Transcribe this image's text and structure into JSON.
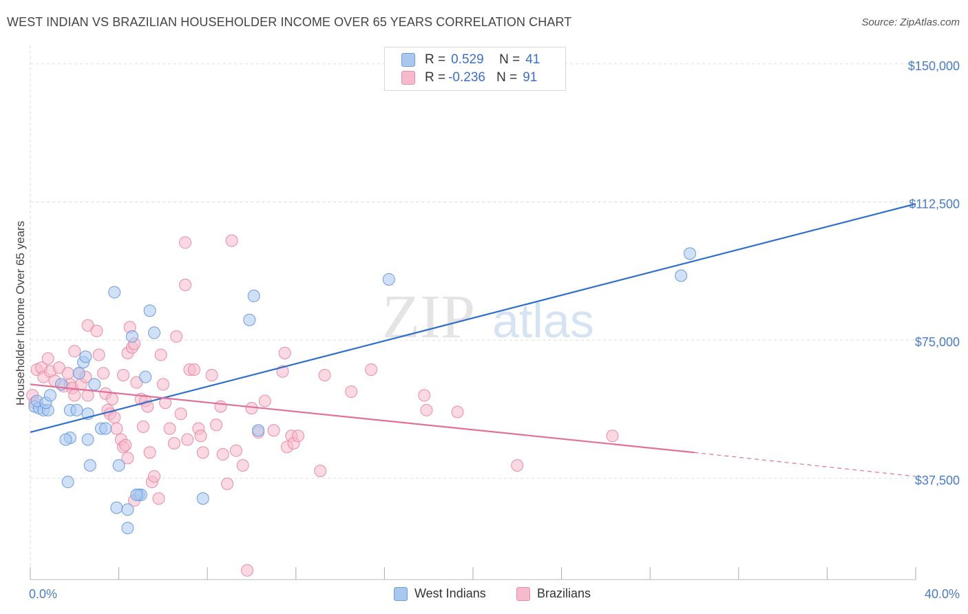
{
  "title": "WEST INDIAN VS BRAZILIAN HOUSEHOLDER INCOME OVER 65 YEARS CORRELATION CHART",
  "source": "Source: ZipAtlas.com",
  "watermark": {
    "zip": "ZIP",
    "atlas": "atlas"
  },
  "legend": {
    "r_label": "R =",
    "n_label": "N =",
    "rows": [
      {
        "r": "0.529",
        "n": "41",
        "color": "#a9c8f0",
        "border": "#6a9bdc"
      },
      {
        "r": "-0.236",
        "n": "91",
        "color": "#f7b9cc",
        "border": "#e98aa8"
      }
    ]
  },
  "bottom_legend": {
    "west": "West Indians",
    "braz": "Brazilians"
  },
  "chart_data": {
    "type": "scatter",
    "ylabel": "Householder Income Over 65 years",
    "xlim": [
      0,
      40
    ],
    "ylim": [
      10000,
      155000
    ],
    "x_tick_labels": [
      "0.0%",
      "40.0%"
    ],
    "y_ticks": [
      {
        "value": 37500,
        "label": "$37,500"
      },
      {
        "value": 75000,
        "label": "$75,000"
      },
      {
        "value": 112500,
        "label": "$112,500"
      },
      {
        "value": 150000,
        "label": "$150,000"
      }
    ],
    "series": [
      {
        "name": "West Indians",
        "color": "#a9c8f0",
        "stroke": "#6a9bdc",
        "line_color": "#2e6fcc",
        "trend": {
          "x0": 0,
          "y0": 50000,
          "x1": 40,
          "y1": 112000
        },
        "points": [
          [
            0.2,
            57000
          ],
          [
            0.4,
            56500
          ],
          [
            0.6,
            56000
          ],
          [
            0.3,
            58500
          ],
          [
            0.8,
            56000
          ],
          [
            0.7,
            58000
          ],
          [
            0.9,
            60000
          ],
          [
            1.8,
            56000
          ],
          [
            2.1,
            56000
          ],
          [
            1.4,
            63000
          ],
          [
            2.4,
            69000
          ],
          [
            2.5,
            70500
          ],
          [
            2.2,
            66000
          ],
          [
            2.9,
            63000
          ],
          [
            2.6,
            55000
          ],
          [
            1.8,
            48500
          ],
          [
            1.6,
            48000
          ],
          [
            2.6,
            48000
          ],
          [
            3.2,
            51000
          ],
          [
            3.4,
            51000
          ],
          [
            3.8,
            88000
          ],
          [
            5.4,
            83000
          ],
          [
            5.6,
            77000
          ],
          [
            4.6,
            76000
          ],
          [
            5.2,
            65000
          ],
          [
            2.7,
            41000
          ],
          [
            4.0,
            41000
          ],
          [
            1.7,
            36500
          ],
          [
            4.9,
            33000
          ],
          [
            5.0,
            33000
          ],
          [
            4.8,
            33000
          ],
          [
            3.9,
            29500
          ],
          [
            4.4,
            29000
          ],
          [
            4.4,
            24000
          ],
          [
            7.8,
            32000
          ],
          [
            10.1,
            87000
          ],
          [
            9.9,
            80500
          ],
          [
            10.3,
            50500
          ],
          [
            16.2,
            91500
          ],
          [
            29.8,
            98500
          ],
          [
            29.4,
            92500
          ]
        ]
      },
      {
        "name": "Brazilians",
        "color": "#f7b9cc",
        "stroke": "#e98aa8",
        "line_color": "#e0709a",
        "trend": {
          "x0": 0,
          "y0": 63000,
          "x1": 30,
          "y1": 44500
        },
        "trend_ext": {
          "x0": 30,
          "y0": 44500,
          "x1": 40,
          "y1": 38000
        },
        "points": [
          [
            0.1,
            60000
          ],
          [
            0.2,
            58000
          ],
          [
            0.3,
            67000
          ],
          [
            0.5,
            67500
          ],
          [
            0.6,
            65000
          ],
          [
            0.8,
            70000
          ],
          [
            0.9,
            66500
          ],
          [
            1.1,
            64000
          ],
          [
            1.3,
            67500
          ],
          [
            1.5,
            62500
          ],
          [
            1.7,
            66000
          ],
          [
            1.8,
            63000
          ],
          [
            1.9,
            62000
          ],
          [
            2.0,
            60000
          ],
          [
            2.2,
            66000
          ],
          [
            2.3,
            63000
          ],
          [
            2.5,
            65000
          ],
          [
            2.6,
            60000
          ],
          [
            2.0,
            72000
          ],
          [
            2.6,
            79000
          ],
          [
            3.0,
            77500
          ],
          [
            3.1,
            71000
          ],
          [
            3.3,
            66000
          ],
          [
            3.4,
            60500
          ],
          [
            3.5,
            56000
          ],
          [
            3.6,
            55000
          ],
          [
            3.7,
            59000
          ],
          [
            3.8,
            54000
          ],
          [
            3.9,
            51000
          ],
          [
            4.1,
            48000
          ],
          [
            4.2,
            46000
          ],
          [
            4.3,
            46500
          ],
          [
            4.4,
            43000
          ],
          [
            4.2,
            65500
          ],
          [
            4.4,
            71500
          ],
          [
            4.5,
            78500
          ],
          [
            4.6,
            73000
          ],
          [
            4.7,
            74000
          ],
          [
            4.8,
            63500
          ],
          [
            5.0,
            59000
          ],
          [
            5.1,
            51500
          ],
          [
            5.2,
            58500
          ],
          [
            5.3,
            57000
          ],
          [
            5.4,
            44500
          ],
          [
            5.5,
            36500
          ],
          [
            5.6,
            38000
          ],
          [
            5.8,
            32000
          ],
          [
            4.7,
            31500
          ],
          [
            5.9,
            71000
          ],
          [
            6.0,
            63000
          ],
          [
            6.1,
            58000
          ],
          [
            6.3,
            51000
          ],
          [
            6.5,
            47000
          ],
          [
            6.6,
            76000
          ],
          [
            6.8,
            55000
          ],
          [
            7.0,
            90000
          ],
          [
            7.2,
            67000
          ],
          [
            7.4,
            67000
          ],
          [
            7.6,
            51000
          ],
          [
            7.7,
            49000
          ],
          [
            7.8,
            44500
          ],
          [
            7.0,
            101500
          ],
          [
            8.2,
            65500
          ],
          [
            8.6,
            57000
          ],
          [
            8.7,
            44000
          ],
          [
            8.9,
            36000
          ],
          [
            9.1,
            102000
          ],
          [
            9.3,
            45000
          ],
          [
            9.6,
            41000
          ],
          [
            9.8,
            12500
          ],
          [
            10.6,
            58500
          ],
          [
            10.3,
            50000
          ],
          [
            11.0,
            50500
          ],
          [
            11.4,
            66500
          ],
          [
            11.5,
            71500
          ],
          [
            11.6,
            46000
          ],
          [
            11.8,
            49000
          ],
          [
            11.9,
            47000
          ],
          [
            12.1,
            49000
          ],
          [
            13.1,
            39500
          ],
          [
            13.3,
            65500
          ],
          [
            14.5,
            61000
          ],
          [
            15.4,
            67000
          ],
          [
            17.8,
            60000
          ],
          [
            17.9,
            56000
          ],
          [
            19.3,
            55500
          ],
          [
            22.0,
            41000
          ],
          [
            26.3,
            49000
          ],
          [
            10.0,
            56500
          ],
          [
            8.4,
            52000
          ],
          [
            7.1,
            48000
          ]
        ]
      }
    ]
  }
}
